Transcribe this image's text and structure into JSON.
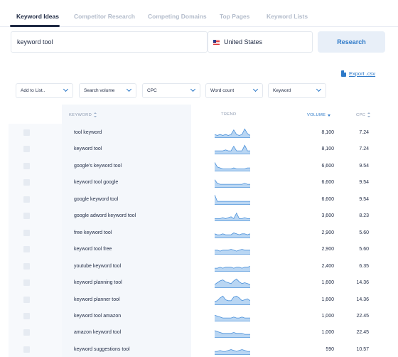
{
  "tabs": [
    {
      "label": "Keyword Ideas",
      "active": true
    },
    {
      "label": "Competitor Research"
    },
    {
      "label": "Competing Domains"
    },
    {
      "label": "Top Pages"
    },
    {
      "label": "Keyword Lists"
    }
  ],
  "search": {
    "value": "keyword tool",
    "country": "United States",
    "button": "Research"
  },
  "export_label": "Export .csv",
  "filters": [
    "Add to List..",
    "Search volume",
    "CPC",
    "Word count",
    "Keyword"
  ],
  "table": {
    "headers": {
      "keyword": "KEYWORD",
      "trend": "TREND",
      "volume": "VOLUME",
      "cpc": "CPC"
    },
    "rows": [
      {
        "keyword": "tool keyword",
        "volume": "8,100",
        "cpc": "7.24",
        "trend": [
          3,
          2,
          3,
          2,
          3,
          2,
          3,
          8,
          3,
          2,
          3,
          9,
          4,
          2
        ]
      },
      {
        "keyword": "keyword tool",
        "volume": "8,100",
        "cpc": "7.24",
        "trend": [
          3,
          3,
          3,
          3,
          4,
          3,
          3,
          8,
          3,
          3,
          3,
          9,
          3,
          3
        ]
      },
      {
        "keyword": "google's keyword tool",
        "volume": "6,600",
        "cpc": "9.54",
        "trend": [
          9,
          4,
          3,
          2,
          2,
          2,
          2,
          3,
          2,
          2,
          2,
          2,
          3,
          3
        ]
      },
      {
        "keyword": "keyword tool google",
        "volume": "6,600",
        "cpc": "9.54",
        "trend": [
          8,
          4,
          3,
          3,
          3,
          3,
          3,
          3,
          3,
          3,
          3,
          4,
          3,
          3
        ]
      },
      {
        "keyword": "google keyword tool",
        "volume": "6,600",
        "cpc": "9.54",
        "trend": [
          10,
          3,
          3,
          3,
          3,
          3,
          3,
          3,
          3,
          3,
          3,
          3,
          3,
          3
        ]
      },
      {
        "keyword": "google adword keyword tool",
        "volume": "3,600",
        "cpc": "8.23",
        "trend": [
          2,
          2,
          2,
          3,
          2,
          3,
          4,
          2,
          8,
          2,
          2,
          3,
          2,
          2
        ]
      },
      {
        "keyword": "free keyword tool",
        "volume": "2,900",
        "cpc": "5.60",
        "trend": [
          4,
          3,
          3,
          4,
          3,
          3,
          3,
          5,
          4,
          3,
          4,
          4,
          3,
          4
        ]
      },
      {
        "keyword": "keyword tool free",
        "volume": "2,900",
        "cpc": "5.60",
        "trend": [
          4,
          4,
          3,
          4,
          4,
          4,
          5,
          4,
          3,
          4,
          5,
          4,
          4,
          4
        ]
      },
      {
        "keyword": "youtube keyword tool",
        "volume": "2,400",
        "cpc": "6.35",
        "trend": [
          3,
          3,
          4,
          3,
          4,
          4,
          4,
          3,
          4,
          4,
          3,
          4,
          4,
          5
        ]
      },
      {
        "keyword": "keyword planning tool",
        "volume": "1,600",
        "cpc": "14.36",
        "trend": [
          3,
          5,
          7,
          8,
          6,
          5,
          4,
          7,
          9,
          6,
          4,
          5,
          4,
          3
        ]
      },
      {
        "keyword": "keyword planner tool",
        "volume": "1,600",
        "cpc": "14.36",
        "trend": [
          3,
          4,
          7,
          9,
          5,
          4,
          4,
          8,
          9,
          7,
          4,
          5,
          6,
          4
        ]
      },
      {
        "keyword": "keyword tool amazon",
        "volume": "1,000",
        "cpc": "22.45",
        "trend": [
          6,
          5,
          4,
          3,
          3,
          3,
          3,
          4,
          3,
          3,
          4,
          3,
          3,
          3
        ]
      },
      {
        "keyword": "amazon keyword tool",
        "volume": "1,000",
        "cpc": "22.45",
        "trend": [
          7,
          6,
          5,
          4,
          4,
          4,
          4,
          5,
          4,
          4,
          4,
          3,
          3,
          3
        ]
      },
      {
        "keyword": "keyword suggestions tool",
        "volume": "590",
        "cpc": "10.57",
        "trend": [
          3,
          3,
          4,
          3,
          3,
          4,
          5,
          4,
          3,
          4,
          5,
          4,
          3,
          3
        ]
      }
    ]
  },
  "colors": {
    "accent": "#2d79c8",
    "trend_fill": "#b9d6f3",
    "trend_line": "#4a90d9"
  }
}
